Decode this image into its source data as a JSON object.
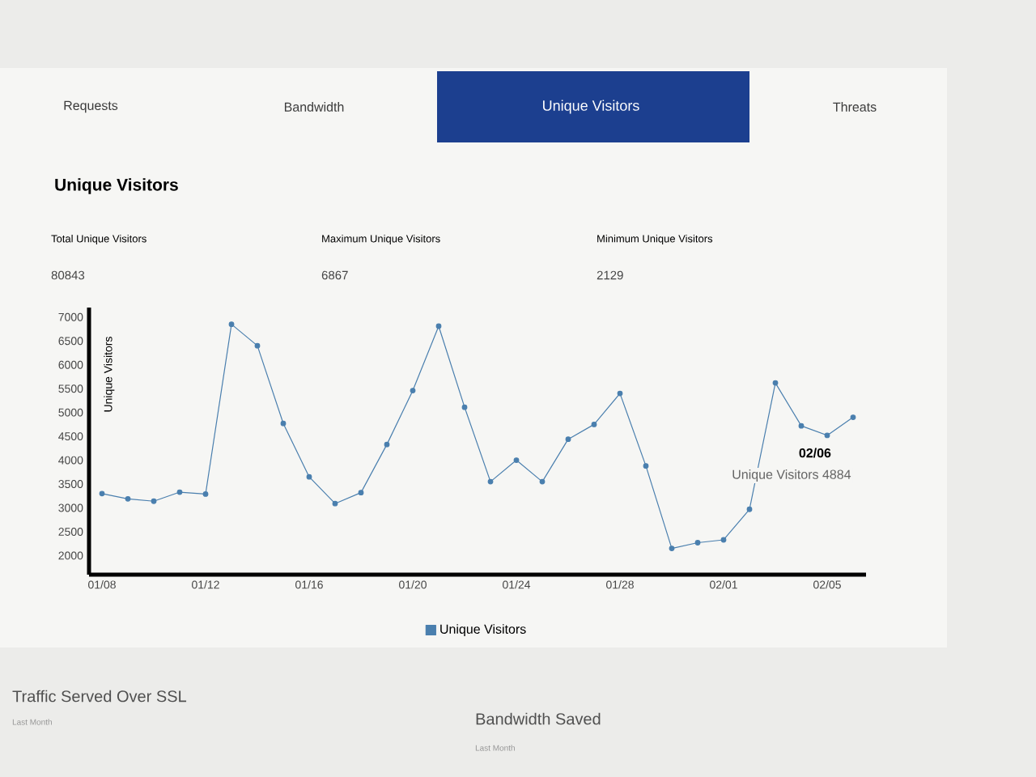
{
  "chart_data": {
    "type": "line",
    "title": "Unique Visitors",
    "ylabel": "Unique Visitors",
    "categories": [
      "01/08",
      null,
      null,
      null,
      "01/12",
      null,
      null,
      null,
      "01/16",
      null,
      null,
      null,
      "01/20",
      null,
      null,
      null,
      "01/24",
      null,
      null,
      null,
      "01/28",
      null,
      null,
      null,
      "02/01",
      null,
      null,
      null,
      "02/05",
      null
    ],
    "series": [
      {
        "name": "Unique Visitors",
        "color": "#4a7fae",
        "values": [
          3300,
          3190,
          3140,
          3330,
          3290,
          6850,
          6400,
          4770,
          3650,
          3090,
          3320,
          4330,
          5460,
          6810,
          5110,
          3550,
          4000,
          3550,
          4440,
          4750,
          5400,
          3880,
          2150,
          2270,
          2330,
          2970,
          5620,
          4720,
          4520,
          4900
        ]
      }
    ],
    "ylim": [
      1600,
      7200
    ],
    "yticks": [
      2000,
      2500,
      3000,
      3500,
      4000,
      4500,
      5000,
      5500,
      6000,
      6500,
      7000
    ],
    "grid": false,
    "legend": "bottom",
    "marker": "circle",
    "line_style": "solid",
    "annotations": [
      "Requests",
      "Bandwidth",
      "Unique Visitors",
      "Threats",
      "Total Unique Visitors",
      "80843",
      "Maximum Unique Visitors",
      "6867",
      "Minimum Unique Visitors",
      "2129",
      "Traffic Served Over SSL",
      "Last Month",
      "Bandwidth Saved",
      "Last Month",
      "02/06",
      "Unique Visitors 4884"
    ]
  }
}
